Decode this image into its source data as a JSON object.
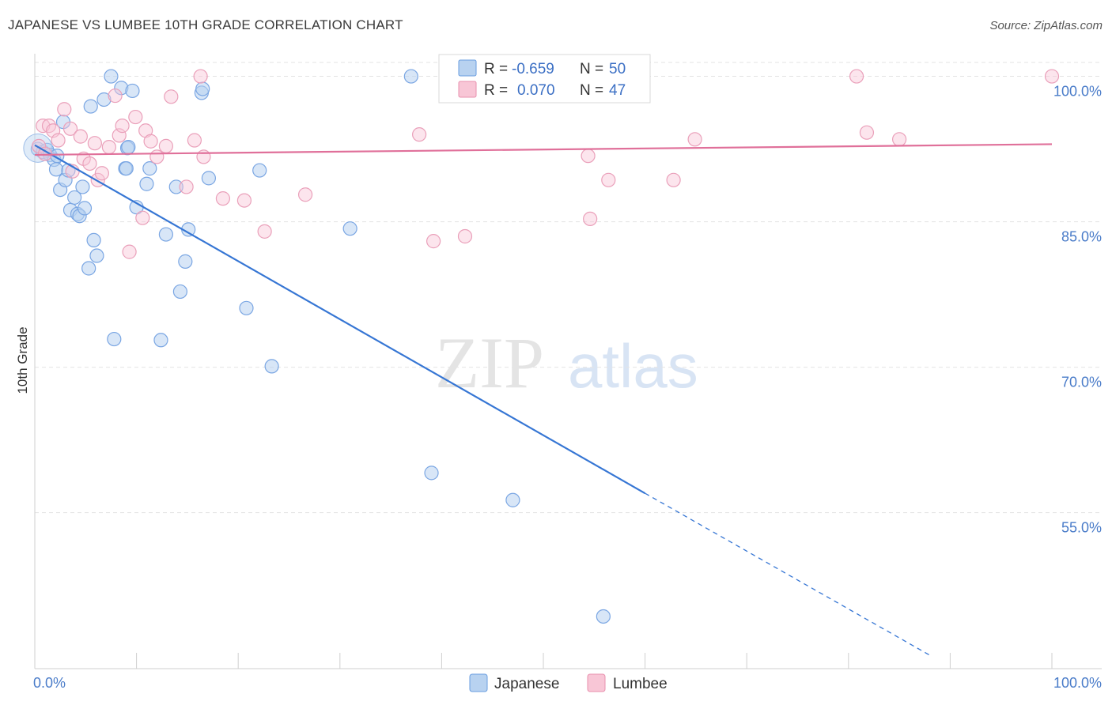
{
  "title": "JAPANESE VS LUMBEE 10TH GRADE CORRELATION CHART",
  "source": "Source: ZipAtlas.com",
  "watermark": {
    "zip": "ZIP",
    "atlas": "atlas"
  },
  "legend": {
    "r_label": "R =",
    "n_label": "N =",
    "items": [
      {
        "name": "Japanese",
        "r": "-0.659",
        "n": "50",
        "fill": "#b8d2f0",
        "stroke": "#6a9ee0"
      },
      {
        "name": "Lumbee",
        "r": "0.070",
        "n": "47",
        "fill": "#f8c6d6",
        "stroke": "#e890ae"
      }
    ]
  },
  "chart_data": {
    "type": "scatter",
    "title": "JAPANESE VS LUMBEE 10TH GRADE CORRELATION CHART",
    "xlabel": "",
    "ylabel": "10th Grade",
    "xlim": [
      0,
      100
    ],
    "ylim": [
      39,
      102
    ],
    "x_tick_labels": [
      "0.0%",
      "100.0%"
    ],
    "y_ticks": [
      55,
      70,
      85,
      100
    ],
    "y_tick_labels": [
      "55.0%",
      "70.0%",
      "85.0%",
      "100.0%"
    ],
    "grid": true,
    "legend_position": "top-center",
    "colors": {
      "japanese_line": "#3676d4",
      "lumbee_line": "#e0709a"
    },
    "series": [
      {
        "name": "Japanese",
        "trend": {
          "x": [
            0,
            60,
            88
          ],
          "y": [
            92.9,
            57.0,
            40.3
          ],
          "solid_until": 60
        },
        "points": [
          [
            0.3,
            92.5
          ],
          [
            0.8,
            92.2
          ],
          [
            1.2,
            92.4
          ],
          [
            1.5,
            91.9
          ],
          [
            1.9,
            91.4
          ],
          [
            2.2,
            91.8
          ],
          [
            2.1,
            90.4
          ],
          [
            2.5,
            88.3
          ],
          [
            2.8,
            95.3
          ],
          [
            3.0,
            89.3
          ],
          [
            3.3,
            90.3
          ],
          [
            3.5,
            86.2
          ],
          [
            3.9,
            87.5
          ],
          [
            4.2,
            85.8
          ],
          [
            4.4,
            85.6
          ],
          [
            4.7,
            88.6
          ],
          [
            4.9,
            86.4
          ],
          [
            5.5,
            96.9
          ],
          [
            5.3,
            80.2
          ],
          [
            5.8,
            83.1
          ],
          [
            6.1,
            81.5
          ],
          [
            6.8,
            97.6
          ],
          [
            7.5,
            100.0
          ],
          [
            7.8,
            72.9
          ],
          [
            8.5,
            98.8
          ],
          [
            8.9,
            90.5
          ],
          [
            9.1,
            92.6
          ],
          [
            9.2,
            92.7
          ],
          [
            9.6,
            98.5
          ],
          [
            10.0,
            86.5
          ],
          [
            11.0,
            88.9
          ],
          [
            11.3,
            90.5
          ],
          [
            12.4,
            72.8
          ],
          [
            12.9,
            83.7
          ],
          [
            13.9,
            88.6
          ],
          [
            14.3,
            77.8
          ],
          [
            14.8,
            80.9
          ],
          [
            15.1,
            84.2
          ],
          [
            16.4,
            98.3
          ],
          [
            16.5,
            98.7
          ],
          [
            17.1,
            89.5
          ],
          [
            20.8,
            76.1
          ],
          [
            22.1,
            90.3
          ],
          [
            23.3,
            70.1
          ],
          [
            31.0,
            84.3
          ],
          [
            37.0,
            100.0
          ],
          [
            39.0,
            59.1
          ],
          [
            47.0,
            56.3
          ],
          [
            55.9,
            44.3
          ],
          [
            9.0,
            90.5
          ]
        ]
      },
      {
        "name": "Lumbee",
        "trend": {
          "x": [
            0,
            100
          ],
          "y": [
            91.9,
            93.0
          ]
        },
        "points": [
          [
            0.8,
            94.9
          ],
          [
            1.4,
            94.9
          ],
          [
            1.8,
            94.4
          ],
          [
            2.3,
            93.4
          ],
          [
            2.9,
            96.6
          ],
          [
            3.5,
            94.6
          ],
          [
            3.7,
            90.2
          ],
          [
            4.5,
            93.8
          ],
          [
            4.8,
            91.5
          ],
          [
            5.4,
            91.0
          ],
          [
            5.9,
            93.1
          ],
          [
            6.2,
            89.3
          ],
          [
            6.6,
            90.0
          ],
          [
            7.3,
            92.7
          ],
          [
            7.9,
            98.0
          ],
          [
            8.3,
            93.9
          ],
          [
            8.6,
            94.9
          ],
          [
            9.3,
            81.9
          ],
          [
            9.9,
            95.8
          ],
          [
            10.6,
            85.4
          ],
          [
            10.9,
            94.4
          ],
          [
            11.4,
            93.3
          ],
          [
            12.0,
            91.7
          ],
          [
            12.9,
            92.8
          ],
          [
            13.4,
            97.9
          ],
          [
            14.9,
            88.6
          ],
          [
            15.7,
            93.4
          ],
          [
            16.3,
            100.0
          ],
          [
            16.6,
            91.7
          ],
          [
            18.5,
            87.4
          ],
          [
            20.6,
            87.2
          ],
          [
            22.6,
            84.0
          ],
          [
            26.6,
            87.8
          ],
          [
            37.8,
            94.0
          ],
          [
            39.2,
            83.0
          ],
          [
            42.3,
            83.5
          ],
          [
            54.4,
            91.8
          ],
          [
            54.6,
            85.3
          ],
          [
            56.4,
            89.3
          ],
          [
            62.8,
            89.3
          ],
          [
            64.9,
            93.5
          ],
          [
            80.8,
            100.0
          ],
          [
            81.8,
            94.2
          ],
          [
            85.0,
            93.5
          ],
          [
            100.0,
            100.0
          ],
          [
            0.4,
            92.8
          ],
          [
            1.0,
            92.0
          ]
        ]
      }
    ]
  }
}
